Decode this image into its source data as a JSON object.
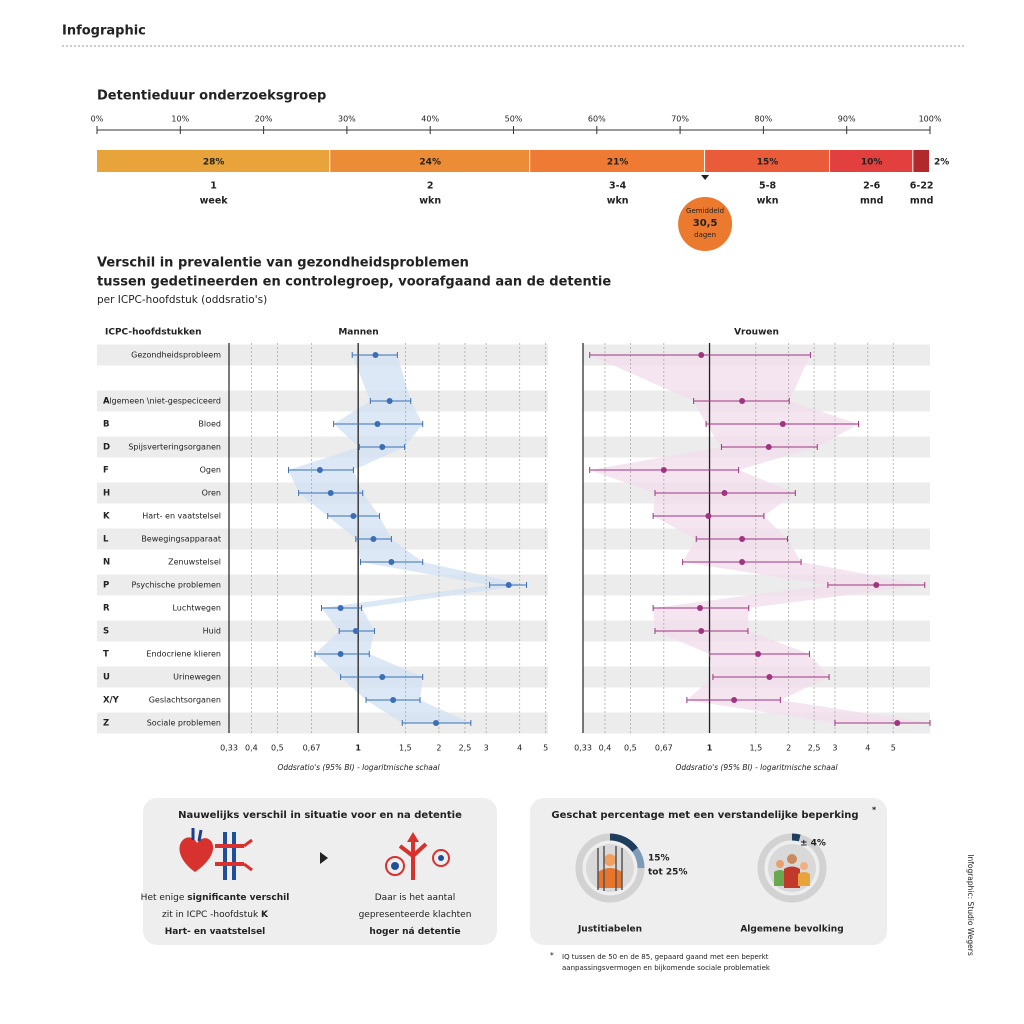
{
  "header": {
    "title": "Infographic"
  },
  "credit": "Infographic: Studio Wegers",
  "chart_data": [
    {
      "type": "bar",
      "stacked": true,
      "orientation": "horizontal",
      "title": "Detentieduur onderzoeksgroep",
      "categories": [
        "1",
        "2",
        "3-4",
        "5-8",
        "2-6",
        "6-22"
      ],
      "category_units": [
        "week",
        "wkn",
        "wkn",
        "wkn",
        "mnd",
        "mnd"
      ],
      "values": [
        28,
        24,
        21,
        15,
        10,
        2
      ],
      "value_labels": [
        "28%",
        "24%",
        "21%",
        "15%",
        "10%",
        "2%"
      ],
      "colors": [
        "#e8a43b",
        "#ec8c36",
        "#ee7a33",
        "#ea5b3a",
        "#e23f3f",
        "#b2292b"
      ],
      "xlim": [
        0,
        100
      ],
      "xticks": [
        {
          "value": 0,
          "label": "0%"
        },
        {
          "value": 10,
          "label": "10%"
        },
        {
          "value": 20,
          "label": "20%"
        },
        {
          "value": 30,
          "label": "30%"
        },
        {
          "value": 40,
          "label": "40%"
        },
        {
          "value": 50,
          "label": "50%"
        },
        {
          "value": 60,
          "label": "60%"
        },
        {
          "value": 70,
          "label": "70%"
        },
        {
          "value": 80,
          "label": "80%"
        },
        {
          "value": 90,
          "label": "90%"
        },
        {
          "value": 100,
          "label": "100%"
        }
      ],
      "annotation": {
        "value": 73,
        "lines": [
          "Gemiddeld",
          "30,5",
          "dagen"
        ],
        "color": "#ec7a2e"
      }
    },
    {
      "type": "forest",
      "title": [
        "Verschil in prevalentie van gezondheidsproblemen",
        "tussen gedetineerden en controlegroep, voorafgaand aan de detentie"
      ],
      "subtitle": "per ICPC-hoofdstuk (oddsratio's)",
      "category_header": "ICPC-hoofdstukken",
      "codes": [
        null,
        "A",
        "B",
        "D",
        "F",
        "H",
        "K",
        "L",
        "N",
        "P",
        "R",
        "S",
        "T",
        "U",
        "X/Y",
        "Z"
      ],
      "categories": [
        "Gezondheidsprobleem",
        "Algemeen \\niet-gespeciceerd",
        "Bloed",
        "Spijsverteringsorganen",
        "Ogen",
        "Oren",
        "Hart- en vaatstelsel",
        "Bewegingsapparaat",
        "Zenuwstelsel",
        "Psychische problemen",
        "Luchtwegen",
        "Huid",
        "Endocriene klieren",
        "Urinewegen",
        "Geslachtsorganen",
        "Sociale problemen"
      ],
      "xscale": "log",
      "grid": true,
      "panels": [
        {
          "name": "Mannen",
          "color": "#3a6fb5",
          "band_color": "#d3e2f3",
          "values": [
            1.16,
            1.31,
            1.18,
            1.23,
            0.72,
            0.79,
            0.96,
            1.14,
            1.33,
            3.64,
            0.86,
            0.98,
            0.86,
            1.23,
            1.35,
            1.95
          ],
          "lower": [
            0.95,
            1.11,
            0.81,
            1.01,
            0.55,
            0.6,
            0.77,
            0.98,
            1.02,
            3.09,
            0.73,
            0.85,
            0.69,
            0.86,
            1.07,
            1.46
          ],
          "upper": [
            1.4,
            1.57,
            1.74,
            1.49,
            0.96,
            1.04,
            1.2,
            1.33,
            1.74,
            4.24,
            1.03,
            1.15,
            1.1,
            1.74,
            1.7,
            2.63
          ],
          "xlim": [
            0.33,
            5.1
          ],
          "xticks": [
            {
              "value": 0.33,
              "label": "0,33"
            },
            {
              "value": 0.4,
              "label": "0,4"
            },
            {
              "value": 0.5,
              "label": "0,5"
            },
            {
              "value": 0.67,
              "label": "0,67"
            },
            1,
            {
              "value": 1.5,
              "label": "1,5"
            },
            2,
            {
              "value": 2.5,
              "label": "2,5"
            },
            3,
            4,
            5
          ],
          "xlabel": "Oddsratio's (95% BI) - logaritmische schaal"
        },
        {
          "name": "Vrouwen",
          "color": "#a0357f",
          "band_color": "#f3dfec",
          "values": [
            0.93,
            1.33,
            1.9,
            1.68,
            0.67,
            1.14,
            0.99,
            1.33,
            1.33,
            4.31,
            0.92,
            0.93,
            1.53,
            1.69,
            1.24,
            5.18
          ],
          "lower": [
            0.35,
            0.87,
            0.97,
            1.11,
            0.35,
            0.62,
            0.61,
            0.89,
            0.79,
            2.82,
            0.61,
            0.62,
            1.0,
            1.03,
            0.82,
            3.0
          ],
          "upper": [
            2.42,
            2.01,
            3.69,
            2.57,
            1.29,
            2.12,
            1.61,
            1.98,
            2.23,
            6.59,
            1.41,
            1.4,
            2.4,
            2.85,
            1.86,
            6.9
          ],
          "xlim": [
            0.33,
            6.9
          ],
          "xticks": [
            {
              "value": 0.33,
              "label": "0,33"
            },
            {
              "value": 0.4,
              "label": "0,4"
            },
            {
              "value": 0.5,
              "label": "0,5"
            },
            {
              "value": 0.67,
              "label": "0,67"
            },
            1,
            {
              "value": 1.5,
              "label": "1,5"
            },
            2,
            {
              "value": 2.5,
              "label": "2,5"
            },
            3,
            4,
            5
          ],
          "xlabel": "Oddsratio's (95% BI) - logaritmische schaal"
        }
      ]
    },
    {
      "type": "ring",
      "title": "Geschat percentage met een verstandelijke beperking",
      "title_note": "*",
      "items": [
        {
          "name": "Justitiabelen",
          "values": [
            15,
            25
          ],
          "value_labels": [
            "15%",
            "tot 25%"
          ]
        },
        {
          "name": "Algemene bevolking",
          "values": [
            4
          ],
          "value_labels": [
            "± 4%"
          ]
        }
      ],
      "colors": [
        "#1f3e5e",
        "#7d9bb9"
      ],
      "footnote": {
        "marker": "*",
        "lines": [
          "IQ tussen de 50 en de 85, gepaard gaand met een beperkt",
          "aanpassingsvermogen en bijkomende sociale problematiek"
        ]
      }
    }
  ],
  "comparison_box": {
    "title": "Nauwelijks verschil in situatie voor en na detentie",
    "before": [
      [
        {
          "text": "Het enige "
        },
        {
          "text": "significante verschil",
          "bold": true
        }
      ],
      [
        {
          "text": "zit in ICPC -hoofdstuk "
        },
        {
          "text": "K",
          "bold": true
        }
      ],
      [
        {
          "text": "Hart- en vaatstelsel",
          "bold": true
        }
      ]
    ],
    "after": [
      [
        {
          "text": "Daar is het aantal"
        }
      ],
      [
        {
          "text": "gepresenteerde klachten"
        }
      ],
      [
        {
          "text": "hoger ná detentie",
          "bold": true
        }
      ]
    ]
  }
}
